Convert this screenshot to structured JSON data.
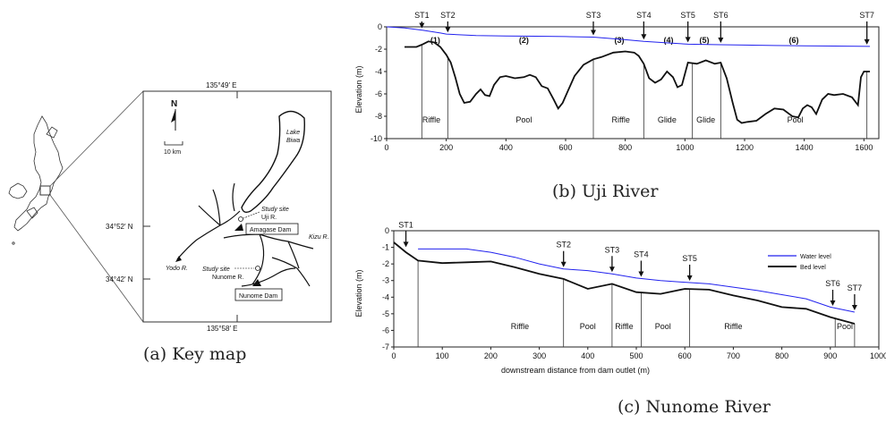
{
  "figure_a": {
    "caption": "(a) Key map",
    "compass": "N",
    "scale": "10 km",
    "lon_top": "135°49′ E",
    "lon_bottom": "135°58′ E",
    "lat_upper": "34°52′ N",
    "lat_lower": "34°42′ N",
    "lake": [
      "Lake",
      "Biwa"
    ],
    "study_site_uji": [
      "Study site",
      "Uji R."
    ],
    "amagase": "Amagase Dam",
    "yodo": "Yodo R.",
    "kizu": "Kizu R.",
    "study_site_nunome": [
      "Study site",
      "Nunome R."
    ],
    "nunome_dam": "Nunome Dam"
  },
  "figure_b": {
    "caption": "(b) Uji River",
    "stations": [
      {
        "label": "ST1",
        "x": 118
      },
      {
        "label": "ST2",
        "x": 205
      },
      {
        "label": "ST3",
        "x": 693
      },
      {
        "label": "ST4",
        "x": 862
      },
      {
        "label": "ST5",
        "x": 1010
      },
      {
        "label": "ST6",
        "x": 1120
      },
      {
        "label": "ST7",
        "x": 1610
      }
    ],
    "reaches": [
      {
        "label": "(1)",
        "x": 163
      },
      {
        "label": "(2)",
        "x": 460
      },
      {
        "label": "(3)",
        "x": 780
      },
      {
        "label": "(4)",
        "x": 945
      },
      {
        "label": "(5)",
        "x": 1065
      },
      {
        "label": "(6)",
        "x": 1365
      }
    ],
    "units": [
      {
        "label": "Riffle",
        "x": 150
      },
      {
        "label": "Pool",
        "x": 460
      },
      {
        "label": "Riffle",
        "x": 785
      },
      {
        "label": "Glide",
        "x": 940
      },
      {
        "label": "Glide",
        "x": 1070
      },
      {
        "label": "Pool",
        "x": 1370
      }
    ]
  },
  "figure_c": {
    "caption": "(c) Nunome River",
    "stations": [
      {
        "label": "ST1",
        "x": 25
      },
      {
        "label": "ST2",
        "x": 350
      },
      {
        "label": "ST3",
        "x": 450
      },
      {
        "label": "ST4",
        "x": 510
      },
      {
        "label": "ST5",
        "x": 610
      },
      {
        "label": "ST6",
        "x": 905
      },
      {
        "label": "ST7",
        "x": 950
      }
    ],
    "units": [
      {
        "label": "Riffle",
        "x": 260
      },
      {
        "label": "Pool",
        "x": 400
      },
      {
        "label": "Riffle",
        "x": 475
      },
      {
        "label": "Pool",
        "x": 555
      },
      {
        "label": "Riffle",
        "x": 700
      },
      {
        "label": "Pool",
        "x": 930
      }
    ]
  },
  "chart_data": [
    {
      "type": "line",
      "ylabel": "Elevation (m)",
      "xlim": [
        0,
        1650
      ],
      "ylim": [
        -10,
        0
      ],
      "x_ticks": [
        0,
        200,
        400,
        600,
        800,
        1000,
        1200,
        1400,
        1600
      ],
      "y_ticks": [
        0,
        -2,
        -4,
        -6,
        -8,
        -10
      ],
      "legend": null,
      "series": [
        {
          "key": "water",
          "color": "#2222ee",
          "x": [
            0,
            60,
            120,
            180,
            200,
            300,
            400,
            500,
            600,
            693,
            800,
            862,
            950,
            1010,
            1120,
            1200,
            1300,
            1400,
            1500,
            1620
          ],
          "y": [
            0,
            -0.1,
            -0.3,
            -0.55,
            -0.65,
            -0.78,
            -0.82,
            -0.84,
            -0.87,
            -0.92,
            -1.15,
            -1.3,
            -1.45,
            -1.55,
            -1.6,
            -1.63,
            -1.67,
            -1.7,
            -1.72,
            -1.75
          ]
        },
        {
          "key": "bed",
          "color": "#111111",
          "x": [
            60,
            80,
            100,
            118,
            140,
            160,
            180,
            200,
            215,
            230,
            245,
            260,
            280,
            300,
            315,
            330,
            345,
            360,
            380,
            400,
            430,
            460,
            480,
            500,
            520,
            540,
            560,
            575,
            590,
            610,
            630,
            660,
            693,
            720,
            760,
            800,
            830,
            845,
            862,
            880,
            900,
            920,
            940,
            960,
            975,
            990,
            1010,
            1040,
            1070,
            1100,
            1120,
            1140,
            1160,
            1175,
            1190,
            1210,
            1240,
            1270,
            1300,
            1330,
            1360,
            1380,
            1395,
            1410,
            1425,
            1440,
            1460,
            1480,
            1500,
            1530,
            1560,
            1580,
            1590,
            1600,
            1620
          ],
          "y": [
            -1.8,
            -1.8,
            -1.8,
            -1.6,
            -1.3,
            -1.4,
            -1.8,
            -2.5,
            -3.2,
            -4.5,
            -6.0,
            -6.8,
            -6.7,
            -6.0,
            -5.6,
            -6.1,
            -6.2,
            -5.2,
            -4.5,
            -4.4,
            -4.6,
            -4.5,
            -4.3,
            -4.5,
            -5.3,
            -5.5,
            -6.5,
            -7.3,
            -6.8,
            -5.6,
            -4.4,
            -3.4,
            -2.9,
            -2.7,
            -2.3,
            -2.2,
            -2.3,
            -2.6,
            -3.3,
            -4.6,
            -5.0,
            -4.7,
            -4.0,
            -4.5,
            -5.4,
            -5.2,
            -3.2,
            -3.3,
            -3.0,
            -3.3,
            -3.2,
            -4.6,
            -6.8,
            -8.3,
            -8.6,
            -8.5,
            -8.4,
            -7.8,
            -7.3,
            -7.4,
            -8.0,
            -8.1,
            -7.3,
            -7.0,
            -7.2,
            -7.8,
            -6.5,
            -6.0,
            -6.1,
            -6.0,
            -6.3,
            -7.0,
            -4.5,
            -4.0,
            -4.0
          ]
        }
      ]
    },
    {
      "type": "line",
      "ylabel": "Elevation (m)",
      "xlabel": "downstream distance from dam outlet (m)",
      "xlim": [
        0,
        1000
      ],
      "ylim": [
        -7,
        0
      ],
      "x_ticks": [
        0,
        100,
        200,
        300,
        400,
        500,
        600,
        700,
        800,
        900,
        1000
      ],
      "y_ticks": [
        0,
        -1,
        -2,
        -3,
        -4,
        -5,
        -6,
        -7
      ],
      "legend": "top-right",
      "series": [
        {
          "key": "water",
          "name": "Water level",
          "color": "#2222ee",
          "x": [
            50,
            100,
            150,
            200,
            250,
            300,
            350,
            400,
            450,
            500,
            550,
            600,
            650,
            700,
            750,
            800,
            850,
            900,
            950
          ],
          "y": [
            -1.1,
            -1.1,
            -1.1,
            -1.3,
            -1.6,
            -2.0,
            -2.3,
            -2.4,
            -2.6,
            -2.85,
            -3.0,
            -3.1,
            -3.2,
            -3.4,
            -3.6,
            -3.85,
            -4.1,
            -4.6,
            -4.9
          ]
        },
        {
          "key": "bed",
          "name": "Bed level",
          "color": "#111111",
          "x": [
            0,
            25,
            50,
            100,
            150,
            200,
            250,
            300,
            350,
            400,
            450,
            500,
            550,
            600,
            650,
            700,
            750,
            800,
            850,
            900,
            950
          ],
          "y": [
            -0.7,
            -1.3,
            -1.8,
            -1.95,
            -1.9,
            -1.85,
            -2.2,
            -2.6,
            -2.9,
            -3.5,
            -3.2,
            -3.7,
            -3.8,
            -3.5,
            -3.55,
            -3.9,
            -4.2,
            -4.6,
            -4.7,
            -5.2,
            -5.6
          ]
        }
      ]
    }
  ]
}
